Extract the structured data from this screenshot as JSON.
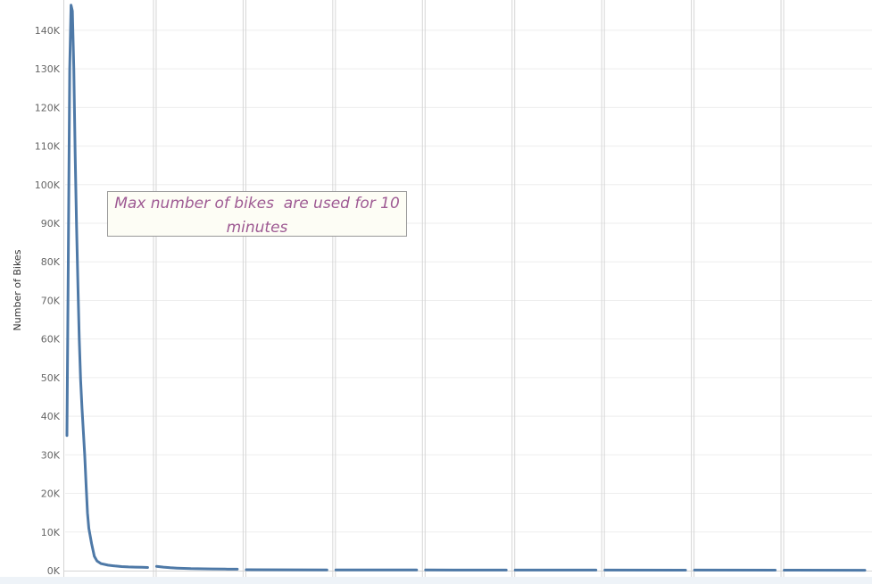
{
  "chart_data": {
    "type": "line",
    "ylabel": "Number of Bikes",
    "ylim": [
      0,
      146000
    ],
    "yticks": [
      {
        "value": 0,
        "label": "0K"
      },
      {
        "value": 10000,
        "label": "10K"
      },
      {
        "value": 20000,
        "label": "20K"
      },
      {
        "value": 30000,
        "label": "30K"
      },
      {
        "value": 40000,
        "label": "40K"
      },
      {
        "value": 50000,
        "label": "50K"
      },
      {
        "value": 60000,
        "label": "60K"
      },
      {
        "value": 70000,
        "label": "70K"
      },
      {
        "value": 80000,
        "label": "80K"
      },
      {
        "value": 90000,
        "label": "90K"
      },
      {
        "value": 100000,
        "label": "100K"
      },
      {
        "value": 110000,
        "label": "110K"
      },
      {
        "value": 120000,
        "label": "120K"
      },
      {
        "value": 130000,
        "label": "130K"
      },
      {
        "value": 140000,
        "label": "140K"
      }
    ],
    "grid": true,
    "color": "#4e79a7",
    "panels": [
      {
        "x": [
          0,
          1,
          2,
          3,
          4,
          5,
          6,
          7,
          8,
          9,
          10,
          11,
          12,
          13,
          14,
          15,
          16,
          18,
          20,
          22,
          25,
          30,
          35,
          40,
          45,
          50,
          55,
          59
        ],
        "y": [
          35000,
          80000,
          130000,
          146500,
          145000,
          130000,
          108000,
          90000,
          74000,
          60000,
          49500,
          42000,
          36000,
          30000,
          22000,
          15000,
          11000,
          7000,
          3700,
          2500,
          1800,
          1400,
          1200,
          1050,
          950,
          900,
          850,
          800
        ]
      },
      {
        "x": [
          0,
          5,
          10,
          15,
          20,
          25,
          30,
          40,
          50,
          59
        ],
        "y": [
          1100,
          900,
          750,
          650,
          580,
          520,
          480,
          430,
          400,
          380
        ]
      },
      {
        "x": [
          0,
          59
        ],
        "y": [
          220,
          180
        ]
      },
      {
        "x": [
          0,
          59
        ],
        "y": [
          180,
          160
        ]
      },
      {
        "x": [
          0,
          59
        ],
        "y": [
          160,
          140
        ]
      },
      {
        "x": [
          0,
          59
        ],
        "y": [
          150,
          130
        ]
      },
      {
        "x": [
          0,
          59
        ],
        "y": [
          140,
          120
        ]
      },
      {
        "x": [
          0,
          59
        ],
        "y": [
          130,
          110
        ]
      },
      {
        "x": [
          0,
          59
        ],
        "y": [
          120,
          100
        ]
      }
    ]
  },
  "annotation": {
    "text": "Max number of bikes  are used for 10 minutes"
  }
}
